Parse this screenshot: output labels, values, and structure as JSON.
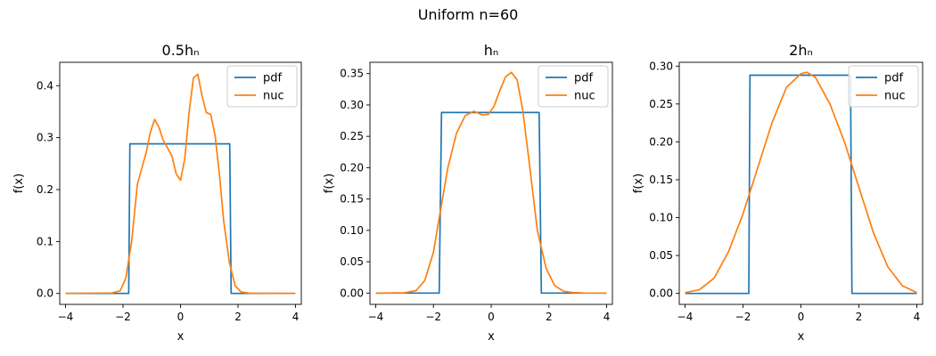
{
  "figure": {
    "suptitle": "Uniform n=60"
  },
  "colors": {
    "pdf": "#1f77b4",
    "nuc": "#ff7f0e"
  },
  "chart_data": [
    {
      "type": "line",
      "title": "0.5hₙ",
      "xlabel": "x",
      "ylabel": "f(x)",
      "xlim": [
        -4.2,
        4.2
      ],
      "ylim": [
        -0.021,
        0.445
      ],
      "xticks": [
        -4,
        -2,
        0,
        2,
        4
      ],
      "yticks": [
        0.0,
        0.1,
        0.2,
        0.3,
        0.4
      ],
      "xtick_labels": [
        "−4",
        "−2",
        "0",
        "2",
        "4"
      ],
      "ytick_labels": [
        "0.0",
        "0.1",
        "0.2",
        "0.3",
        "0.4"
      ],
      "legend": {
        "position": "top-right",
        "entries": [
          "pdf",
          "nuc"
        ]
      },
      "series": [
        {
          "name": "pdf",
          "x": [
            -4,
            -1.8,
            -1.76,
            1.71,
            1.76,
            4
          ],
          "y": [
            0,
            0,
            0.288,
            0.288,
            0,
            0
          ]
        },
        {
          "name": "nuc",
          "x": [
            -4,
            -2.4,
            -2.1,
            -1.9,
            -1.7,
            -1.5,
            -1.35,
            -1.2,
            -1.05,
            -0.9,
            -0.75,
            -0.6,
            -0.45,
            -0.3,
            -0.15,
            0,
            0.15,
            0.3,
            0.45,
            0.6,
            0.75,
            0.9,
            1.05,
            1.2,
            1.35,
            1.5,
            1.7,
            1.9,
            2.1,
            2.4,
            4
          ],
          "y": [
            0,
            0.001,
            0.005,
            0.03,
            0.1,
            0.21,
            0.24,
            0.27,
            0.31,
            0.335,
            0.32,
            0.295,
            0.28,
            0.265,
            0.23,
            0.218,
            0.26,
            0.35,
            0.415,
            0.422,
            0.38,
            0.348,
            0.345,
            0.305,
            0.23,
            0.14,
            0.06,
            0.015,
            0.003,
            0.0005,
            0
          ]
        }
      ]
    },
    {
      "type": "line",
      "title": "hₙ",
      "xlabel": "x",
      "ylabel": "f(x)",
      "xlim": [
        -4.2,
        4.2
      ],
      "ylim": [
        -0.018,
        0.368
      ],
      "xticks": [
        -4,
        -2,
        0,
        2,
        4
      ],
      "yticks": [
        0.0,
        0.05,
        0.1,
        0.15,
        0.2,
        0.25,
        0.3,
        0.35
      ],
      "xtick_labels": [
        "−4",
        "−2",
        "0",
        "2",
        "4"
      ],
      "ytick_labels": [
        "0.00",
        "0.05",
        "0.10",
        "0.15",
        "0.20",
        "0.25",
        "0.30",
        "0.35"
      ],
      "legend": {
        "position": "top-right",
        "entries": [
          "pdf",
          "nuc"
        ]
      },
      "series": [
        {
          "name": "pdf",
          "x": [
            -4,
            -1.8,
            -1.72,
            1.66,
            1.74,
            4
          ],
          "y": [
            0,
            0,
            0.288,
            0.288,
            0,
            0
          ]
        },
        {
          "name": "nuc",
          "x": [
            -4,
            -3,
            -2.6,
            -2.3,
            -2.0,
            -1.8,
            -1.5,
            -1.2,
            -0.9,
            -0.6,
            -0.3,
            -0.1,
            0.1,
            0.3,
            0.5,
            0.7,
            0.9,
            1.1,
            1.3,
            1.6,
            1.9,
            2.2,
            2.5,
            2.8,
            3.2,
            4
          ],
          "y": [
            0,
            0.0005,
            0.004,
            0.02,
            0.065,
            0.12,
            0.2,
            0.255,
            0.283,
            0.29,
            0.284,
            0.285,
            0.298,
            0.323,
            0.345,
            0.352,
            0.34,
            0.29,
            0.215,
            0.1,
            0.04,
            0.012,
            0.003,
            0.001,
            0.0002,
            0
          ]
        }
      ]
    },
    {
      "type": "line",
      "title": "2hₙ",
      "xlabel": "x",
      "ylabel": "f(x)",
      "xlim": [
        -4.2,
        4.2
      ],
      "ylim": [
        -0.0145,
        0.305
      ],
      "xticks": [
        -4,
        -2,
        0,
        2,
        4
      ],
      "yticks": [
        0.0,
        0.05,
        0.1,
        0.15,
        0.2,
        0.25,
        0.3
      ],
      "xtick_labels": [
        "−4",
        "−2",
        "0",
        "2",
        "4"
      ],
      "ytick_labels": [
        "0.00",
        "0.05",
        "0.10",
        "0.15",
        "0.20",
        "0.25",
        "0.30"
      ],
      "legend": {
        "position": "top-right",
        "entries": [
          "pdf",
          "nuc"
        ]
      },
      "series": [
        {
          "name": "pdf",
          "x": [
            -4,
            -1.8,
            -1.76,
            1.71,
            1.76,
            4
          ],
          "y": [
            0,
            0,
            0.288,
            0.288,
            0,
            0
          ]
        },
        {
          "name": "nuc",
          "x": [
            -4,
            -3.5,
            -3,
            -2.5,
            -2,
            -1.5,
            -1,
            -0.5,
            0,
            0.2,
            0.5,
            1,
            1.5,
            2,
            2.5,
            3,
            3.5,
            4
          ],
          "y": [
            0.001,
            0.005,
            0.02,
            0.055,
            0.105,
            0.165,
            0.225,
            0.272,
            0.29,
            0.292,
            0.285,
            0.25,
            0.2,
            0.14,
            0.08,
            0.035,
            0.01,
            0.001
          ]
        }
      ]
    }
  ]
}
